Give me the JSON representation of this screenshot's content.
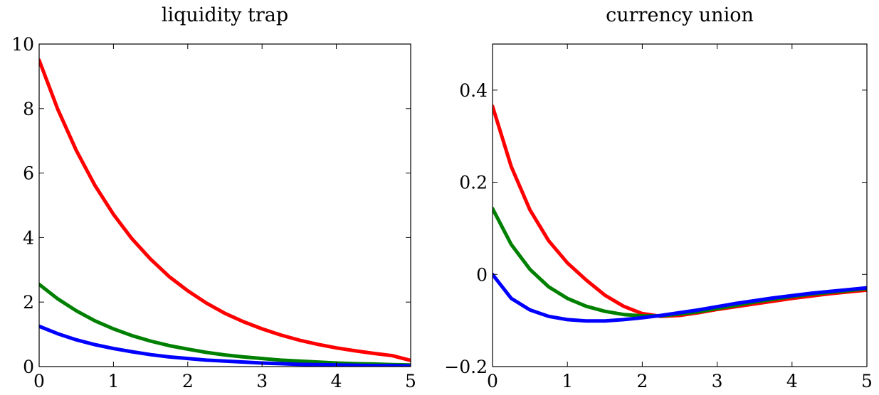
{
  "chart_data": [
    {
      "type": "line",
      "title": "liquidity trap",
      "xlabel": "",
      "ylabel": "",
      "xlim": [
        0,
        5
      ],
      "ylim": [
        0,
        10
      ],
      "x_ticks": [
        0,
        1,
        2,
        3,
        4,
        5
      ],
      "y_ticks": [
        0,
        2,
        4,
        6,
        8,
        10
      ],
      "x_tick_labels": [
        "0",
        "1",
        "2",
        "3",
        "4",
        "5"
      ],
      "y_tick_labels": [
        "0",
        "2",
        "4",
        "6",
        "8",
        "10"
      ],
      "grid": false,
      "x": [
        0,
        0.25,
        0.5,
        0.75,
        1,
        1.25,
        1.5,
        1.75,
        2,
        2.25,
        2.5,
        2.75,
        3,
        3.25,
        3.5,
        3.75,
        4,
        4.25,
        4.5,
        4.75,
        5
      ],
      "series": [
        {
          "color": "#ff0000",
          "values": [
            9.5,
            7.98,
            6.7,
            5.62,
            4.72,
            3.96,
            3.33,
            2.79,
            2.35,
            1.97,
            1.65,
            1.39,
            1.17,
            0.98,
            0.82,
            0.69,
            0.58,
            0.49,
            0.41,
            0.34,
            0.19
          ]
        },
        {
          "color": "#008000",
          "values": [
            2.55,
            2.1,
            1.73,
            1.42,
            1.17,
            0.96,
            0.79,
            0.65,
            0.54,
            0.44,
            0.36,
            0.3,
            0.25,
            0.2,
            0.17,
            0.14,
            0.11,
            0.09,
            0.08,
            0.06,
            0.05
          ]
        },
        {
          "color": "#0000ff",
          "values": [
            1.25,
            1.02,
            0.83,
            0.68,
            0.56,
            0.46,
            0.37,
            0.3,
            0.25,
            0.2,
            0.17,
            0.14,
            0.11,
            0.09,
            0.07,
            0.06,
            0.05,
            0.04,
            0.03,
            0.03,
            0.02
          ]
        }
      ]
    },
    {
      "type": "line",
      "title": "currency union",
      "xlabel": "",
      "ylabel": "",
      "xlim": [
        0,
        5
      ],
      "ylim": [
        -0.2,
        0.5
      ],
      "x_ticks": [
        0,
        1,
        2,
        3,
        4,
        5
      ],
      "y_ticks": [
        -0.2,
        0,
        0.2,
        0.4
      ],
      "x_tick_labels": [
        "0",
        "1",
        "2",
        "3",
        "4",
        "5"
      ],
      "y_tick_labels": [
        "−0.2",
        "0",
        "0.2",
        "0.4"
      ],
      "grid": false,
      "x": [
        0,
        0.25,
        0.5,
        0.75,
        1,
        1.25,
        1.5,
        1.75,
        2,
        2.25,
        2.5,
        2.75,
        3,
        3.25,
        3.5,
        3.75,
        4,
        4.25,
        4.5,
        4.75,
        5
      ],
      "series": [
        {
          "color": "#ff0000",
          "values": [
            0.365,
            0.234,
            0.14,
            0.073,
            0.025,
            -0.012,
            -0.045,
            -0.069,
            -0.085,
            -0.091,
            -0.089,
            -0.083,
            -0.076,
            -0.07,
            -0.064,
            -0.058,
            -0.052,
            -0.047,
            -0.042,
            -0.038,
            -0.034
          ]
        },
        {
          "color": "#008000",
          "values": [
            0.143,
            0.065,
            0.011,
            -0.027,
            -0.052,
            -0.069,
            -0.08,
            -0.087,
            -0.09,
            -0.09,
            -0.086,
            -0.081,
            -0.074,
            -0.067,
            -0.06,
            -0.054,
            -0.048,
            -0.043,
            -0.039,
            -0.035,
            -0.031
          ]
        },
        {
          "color": "#0000ff",
          "values": [
            0,
            -0.052,
            -0.077,
            -0.091,
            -0.098,
            -0.101,
            -0.101,
            -0.098,
            -0.094,
            -0.089,
            -0.083,
            -0.077,
            -0.07,
            -0.063,
            -0.057,
            -0.051,
            -0.046,
            -0.041,
            -0.037,
            -0.033,
            -0.029
          ]
        }
      ]
    }
  ]
}
